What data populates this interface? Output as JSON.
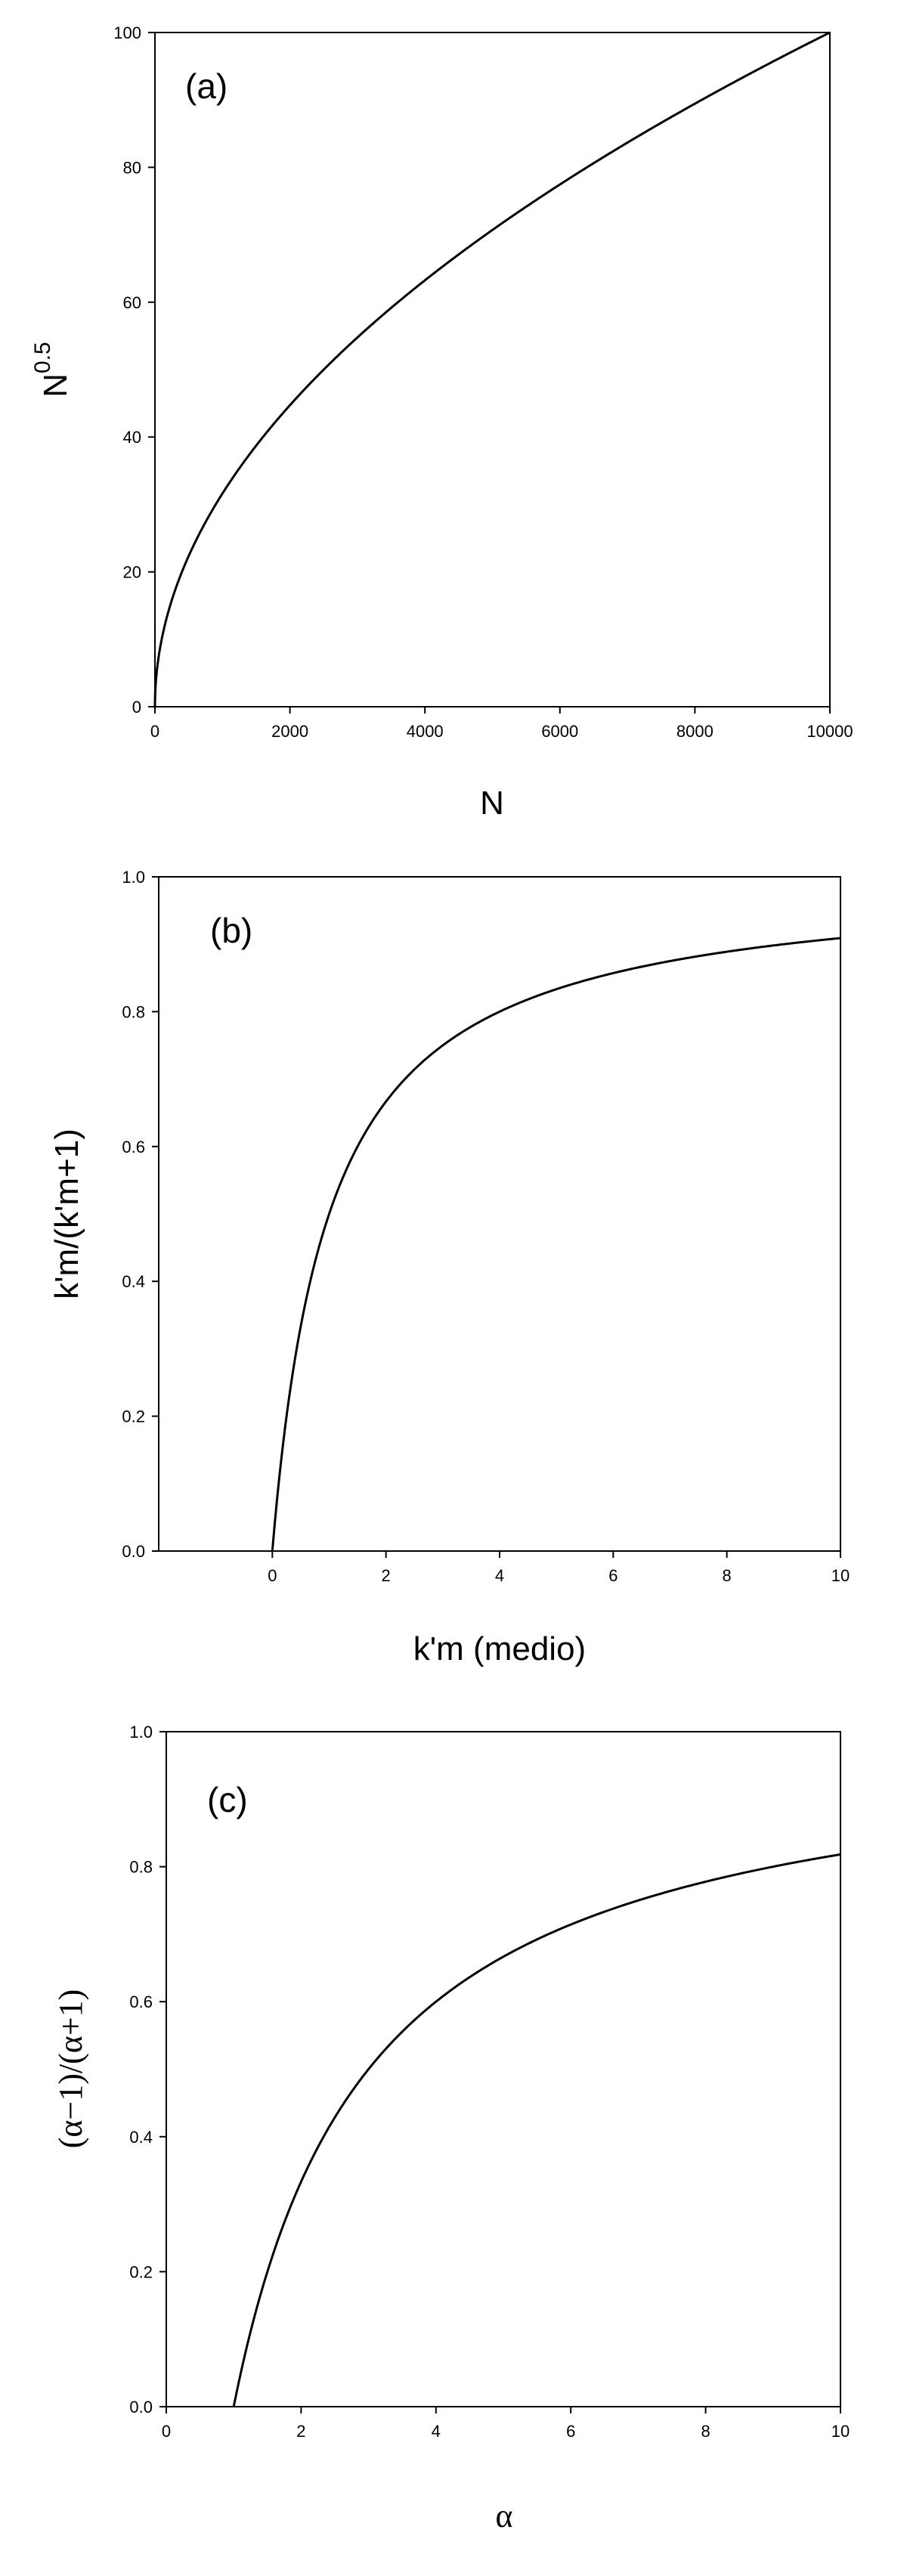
{
  "chart_data": [
    {
      "type": "line",
      "panel_label": "(a)",
      "title": "",
      "xlabel": "N",
      "ylabel_base": "N",
      "ylabel_sup": "0.5",
      "xlim": [
        0,
        10000
      ],
      "ylim": [
        0,
        100
      ],
      "xticks": [
        "0",
        "2000",
        "4000",
        "6000",
        "8000",
        "10000"
      ],
      "yticks": [
        "0",
        "20",
        "40",
        "60",
        "80",
        "100"
      ],
      "grid": false,
      "series": [
        {
          "function": "sqrt(x)",
          "x": [
            0,
            100,
            500,
            1000,
            2000,
            3000,
            4000,
            5000,
            6000,
            7000,
            8000,
            9000,
            10000
          ],
          "y": [
            0,
            10,
            22.4,
            31.6,
            44.7,
            54.8,
            63.2,
            70.7,
            77.5,
            83.7,
            89.4,
            94.9,
            100
          ]
        }
      ]
    },
    {
      "type": "line",
      "panel_label": "(b)",
      "title": "",
      "xlabel": "k'm (medio)",
      "ylabel": "k'm/(k'm+1)",
      "xlim": [
        -2,
        10
      ],
      "ylim": [
        0,
        1
      ],
      "xticks": [
        "0",
        "2",
        "4",
        "6",
        "8",
        "10"
      ],
      "yticks": [
        "0.0",
        "0.2",
        "0.4",
        "0.6",
        "0.8",
        "1.0"
      ],
      "grid": false,
      "series": [
        {
          "function": "x/(x+1)",
          "x": [
            0,
            0.5,
            1,
            2,
            3,
            4,
            6,
            8,
            10
          ],
          "y": [
            0,
            0.333,
            0.5,
            0.667,
            0.75,
            0.8,
            0.857,
            0.889,
            0.909
          ]
        }
      ]
    },
    {
      "type": "line",
      "panel_label": "(c)",
      "title": "",
      "xlabel": "α",
      "ylabel": "(α−1)/(α+1)",
      "xlim": [
        0,
        10
      ],
      "ylim": [
        0,
        1
      ],
      "xticks": [
        "0",
        "2",
        "4",
        "6",
        "8",
        "10"
      ],
      "yticks": [
        "0.0",
        "0.2",
        "0.4",
        "0.6",
        "0.8",
        "1.0"
      ],
      "grid": false,
      "series": [
        {
          "function": "(x-1)/(x+1)",
          "x": [
            1,
            2,
            3,
            4,
            6,
            8,
            10
          ],
          "y": [
            0,
            0.333,
            0.5,
            0.6,
            0.714,
            0.778,
            0.818
          ]
        }
      ]
    }
  ]
}
